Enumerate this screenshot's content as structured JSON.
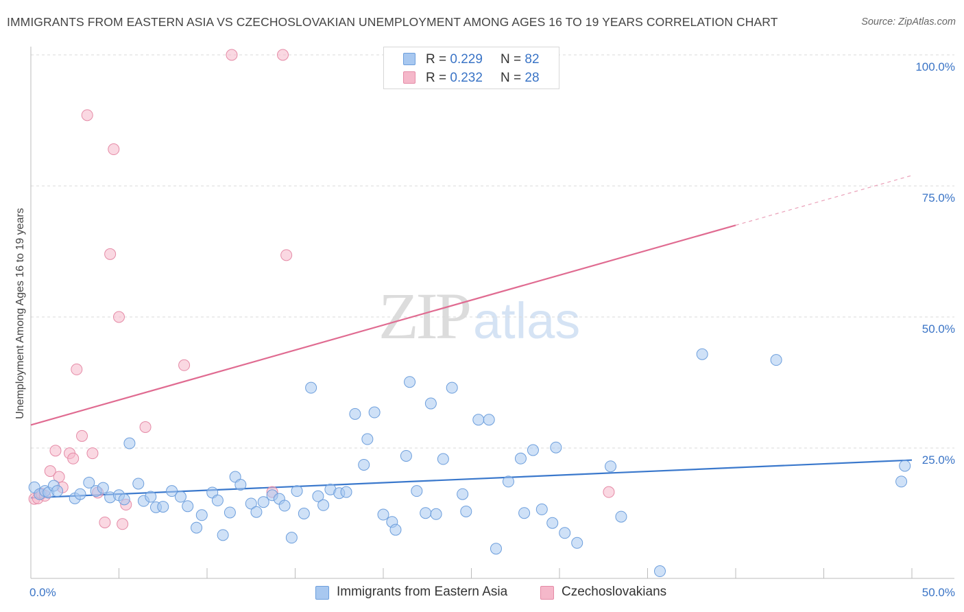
{
  "title": "IMMIGRANTS FROM EASTERN ASIA VS CZECHOSLOVAKIAN UNEMPLOYMENT AMONG AGES 16 TO 19 YEARS CORRELATION CHART",
  "source": "Source: ZipAtlas.com",
  "watermark": {
    "zip": "ZIP",
    "atlas": "atlas"
  },
  "legend": [
    {
      "r_label": "R = ",
      "r_value": "0.229",
      "n_label": "N = ",
      "n_value": "82",
      "color": "#a8c8f0"
    },
    {
      "r_label": "R = ",
      "r_value": "0.232",
      "n_label": "N = ",
      "n_value": "28",
      "color": "#f5b8ca"
    }
  ],
  "bottom_legend": [
    {
      "label": "Immigrants from Eastern Asia",
      "color": "#a8c8f0"
    },
    {
      "label": "Czechoslovakians",
      "color": "#f5b8ca"
    }
  ],
  "chart_data": {
    "type": "scatter",
    "title": "IMMIGRANTS FROM EASTERN ASIA VS CZECHOSLOVAKIAN UNEMPLOYMENT AMONG AGES 16 TO 19 YEARS CORRELATION CHART",
    "xlabel": "",
    "ylabel": "Unemployment Among Ages 16 to 19 years",
    "xlim": [
      0,
      50
    ],
    "ylim": [
      0,
      100
    ],
    "x_tick_labels": [
      "0.0%",
      "50.0%"
    ],
    "y_ticks": [
      25,
      50,
      75,
      100
    ],
    "y_tick_labels": [
      "25.0%",
      "50.0%",
      "75.0%",
      "100.0%"
    ],
    "grid": true,
    "legend_position": "top-center",
    "series": [
      {
        "name": "Immigrants from Eastern Asia",
        "color": "#a8c8f0",
        "stroke": "#6c9edc",
        "trend": {
          "x0": 0,
          "y0": 15.5,
          "x1": 50,
          "y1": 22.7,
          "color": "#3a78cc"
        },
        "points": [
          [
            0.2,
            17.5
          ],
          [
            0.5,
            16.2
          ],
          [
            0.8,
            16.8
          ],
          [
            1.0,
            16.5
          ],
          [
            1.3,
            17.8
          ],
          [
            1.5,
            16.8
          ],
          [
            2.5,
            15.4
          ],
          [
            2.8,
            16.2
          ],
          [
            3.3,
            18.4
          ],
          [
            3.7,
            16.8
          ],
          [
            4.1,
            17.4
          ],
          [
            4.5,
            15.6
          ],
          [
            5.0,
            16.0
          ],
          [
            5.3,
            15.2
          ],
          [
            5.6,
            25.9
          ],
          [
            6.1,
            18.2
          ],
          [
            6.4,
            14.9
          ],
          [
            6.8,
            15.7
          ],
          [
            7.1,
            13.7
          ],
          [
            7.5,
            13.8
          ],
          [
            8.0,
            16.8
          ],
          [
            8.5,
            15.7
          ],
          [
            8.9,
            13.9
          ],
          [
            9.4,
            9.8
          ],
          [
            9.7,
            12.2
          ],
          [
            10.3,
            16.5
          ],
          [
            10.6,
            15.0
          ],
          [
            10.9,
            8.4
          ],
          [
            11.3,
            12.7
          ],
          [
            11.6,
            19.5
          ],
          [
            11.9,
            18.0
          ],
          [
            12.5,
            14.4
          ],
          [
            12.8,
            12.8
          ],
          [
            13.2,
            14.7
          ],
          [
            13.7,
            16.0
          ],
          [
            14.1,
            15.3
          ],
          [
            14.4,
            14.0
          ],
          [
            14.8,
            7.9
          ],
          [
            15.1,
            16.8
          ],
          [
            15.5,
            12.5
          ],
          [
            15.9,
            36.5
          ],
          [
            16.3,
            15.8
          ],
          [
            16.6,
            14.1
          ],
          [
            17.0,
            17.1
          ],
          [
            17.5,
            16.4
          ],
          [
            17.9,
            16.6
          ],
          [
            18.4,
            31.5
          ],
          [
            18.9,
            21.8
          ],
          [
            19.1,
            26.7
          ],
          [
            19.5,
            31.8
          ],
          [
            20.0,
            12.3
          ],
          [
            20.5,
            10.9
          ],
          [
            20.7,
            9.4
          ],
          [
            21.3,
            23.5
          ],
          [
            21.5,
            37.6
          ],
          [
            21.9,
            16.8
          ],
          [
            22.4,
            12.6
          ],
          [
            22.7,
            33.5
          ],
          [
            23.0,
            12.4
          ],
          [
            23.4,
            22.9
          ],
          [
            23.9,
            36.5
          ],
          [
            24.5,
            16.2
          ],
          [
            24.7,
            12.9
          ],
          [
            25.4,
            30.4
          ],
          [
            26.0,
            30.4
          ],
          [
            26.4,
            5.8
          ],
          [
            27.1,
            18.6
          ],
          [
            27.8,
            23.0
          ],
          [
            28.0,
            12.6
          ],
          [
            28.5,
            24.6
          ],
          [
            29.0,
            13.3
          ],
          [
            29.6,
            10.7
          ],
          [
            29.8,
            25.1
          ],
          [
            30.3,
            8.8
          ],
          [
            31.0,
            6.9
          ],
          [
            32.9,
            21.5
          ],
          [
            33.5,
            11.9
          ],
          [
            35.7,
            1.5
          ],
          [
            38.1,
            42.9
          ],
          [
            42.3,
            41.8
          ],
          [
            49.4,
            18.6
          ],
          [
            49.6,
            21.6
          ]
        ]
      },
      {
        "name": "Czechoslovakians",
        "color": "#f5b8ca",
        "stroke": "#e58aa6",
        "trend": {
          "x0": 0,
          "y0": 29.4,
          "x1": 40,
          "y1": 67.5,
          "x_end_dashed": 50,
          "y_end_dashed": 77.0,
          "color": "#e06b91"
        },
        "points": [
          [
            0.2,
            15.3
          ],
          [
            0.4,
            15.4
          ],
          [
            0.6,
            16.3
          ],
          [
            0.8,
            15.9
          ],
          [
            1.1,
            20.6
          ],
          [
            1.4,
            24.5
          ],
          [
            1.6,
            19.5
          ],
          [
            1.8,
            17.5
          ],
          [
            2.2,
            24.0
          ],
          [
            2.4,
            23.0
          ],
          [
            2.6,
            40.0
          ],
          [
            2.9,
            27.3
          ],
          [
            3.2,
            88.5
          ],
          [
            3.5,
            24.0
          ],
          [
            3.8,
            16.5
          ],
          [
            4.2,
            10.8
          ],
          [
            4.7,
            82.0
          ],
          [
            4.5,
            62.0
          ],
          [
            5.0,
            50.0
          ],
          [
            5.2,
            10.5
          ],
          [
            5.4,
            14.2
          ],
          [
            6.5,
            29.0
          ],
          [
            8.7,
            40.8
          ],
          [
            11.4,
            100.0
          ],
          [
            14.3,
            100.0
          ],
          [
            14.5,
            61.8
          ],
          [
            13.7,
            16.6
          ],
          [
            32.8,
            16.6
          ]
        ]
      }
    ]
  }
}
